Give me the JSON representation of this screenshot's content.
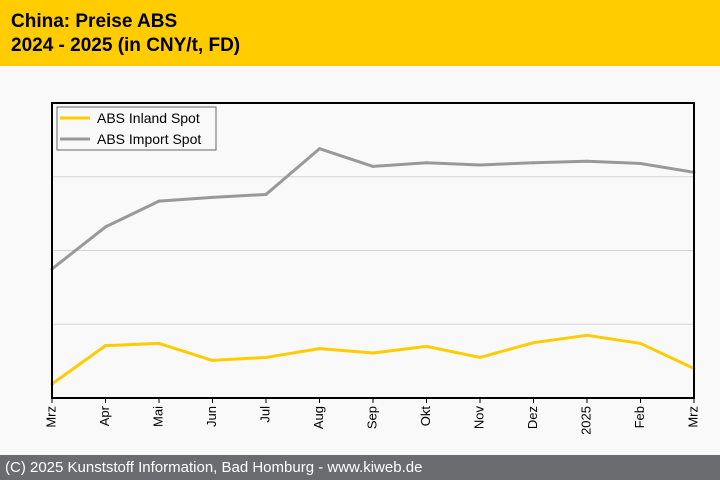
{
  "header": {
    "title_line1": "China: Preise ABS",
    "title_line2": "2024 - 2025 (in CNY/t, FD)",
    "background": "#ffcc00"
  },
  "footer": {
    "text": "(C) 2025 Kunststoff Information, Bad Homburg - www.kiweb.de",
    "background": "#6b6c70"
  },
  "chart_data": {
    "type": "line",
    "title": "China: Preise ABS 2024 - 2025 (in CNY/t, FD)",
    "xlabel": "",
    "ylabel": "",
    "y_units_note": "relative scale (no y tick labels shown); 1 unit = 1 gridline interval",
    "ylim": [
      0,
      4
    ],
    "yticks_gridlines": [
      1,
      2,
      3
    ],
    "grid": true,
    "legend_position": "top-left",
    "categories": [
      "Mrz",
      "Apr",
      "Mai",
      "Jun",
      "Jul",
      "Aug",
      "Sep",
      "Okt",
      "Nov",
      "Dez",
      "2025",
      "Feb",
      "Mrz"
    ],
    "series": [
      {
        "name": "ABS Inland Spot",
        "color": "#ffcc00",
        "values": [
          0.19,
          0.71,
          0.74,
          0.51,
          0.55,
          0.67,
          0.61,
          0.7,
          0.55,
          0.75,
          0.85,
          0.74,
          0.4
        ]
      },
      {
        "name": "ABS Import Spot",
        "color": "#999999",
        "values": [
          1.75,
          2.32,
          2.67,
          2.72,
          2.76,
          3.38,
          3.14,
          3.19,
          3.16,
          3.19,
          3.21,
          3.18,
          3.06
        ]
      }
    ]
  }
}
